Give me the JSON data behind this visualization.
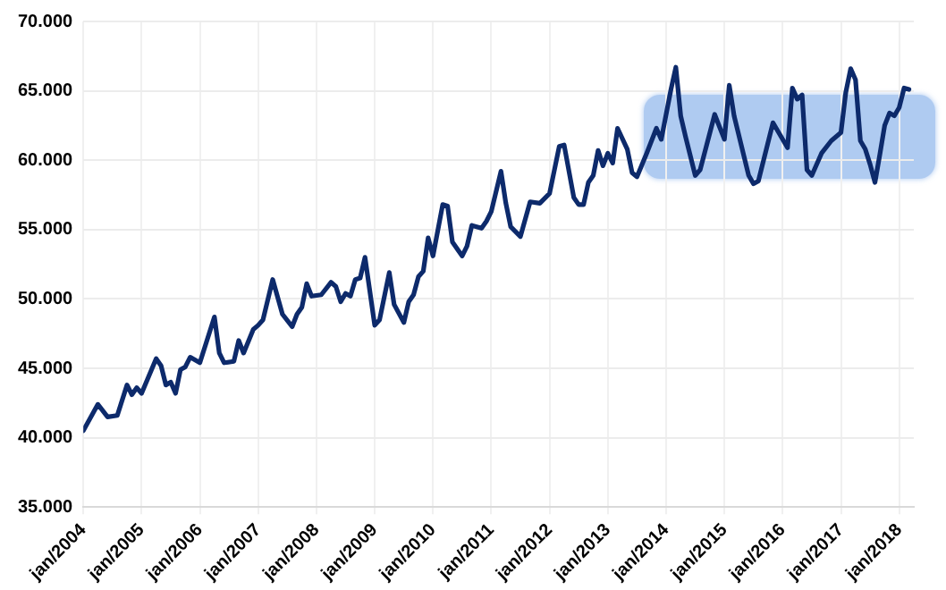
{
  "chart_data": {
    "type": "line",
    "grid": true,
    "legend": false,
    "marker": "none",
    "line_style": "solid",
    "xlim": [
      "2004-01",
      "2018-04"
    ],
    "xticks": [
      {
        "value": "2004-01",
        "label": "jan/2004"
      },
      {
        "value": "2005-01",
        "label": "jan/2005"
      },
      {
        "value": "2006-01",
        "label": "jan/2006"
      },
      {
        "value": "2007-01",
        "label": "jan/2007"
      },
      {
        "value": "2008-01",
        "label": "jan/2008"
      },
      {
        "value": "2009-01",
        "label": "jan/2009"
      },
      {
        "value": "2010-01",
        "label": "jan/2010"
      },
      {
        "value": "2011-01",
        "label": "jan/2011"
      },
      {
        "value": "2012-01",
        "label": "jan/2012"
      },
      {
        "value": "2013-01",
        "label": "jan/2013"
      },
      {
        "value": "2014-01",
        "label": "jan/2014"
      },
      {
        "value": "2015-01",
        "label": "jan/2015"
      },
      {
        "value": "2016-01",
        "label": "jan/2016"
      },
      {
        "value": "2017-01",
        "label": "jan/2017"
      },
      {
        "value": "2018-01",
        "label": "jan/2018"
      }
    ],
    "ylim": [
      35000,
      70000
    ],
    "yticks": [
      {
        "value": 35000,
        "label": "35.000"
      },
      {
        "value": 40000,
        "label": "40.000"
      },
      {
        "value": 45000,
        "label": "45.000"
      },
      {
        "value": 50000,
        "label": "50.000"
      },
      {
        "value": 55000,
        "label": "55.000"
      },
      {
        "value": 60000,
        "label": "60.000"
      },
      {
        "value": 65000,
        "label": "65.000"
      },
      {
        "value": 70000,
        "label": "70.000"
      }
    ],
    "x": [
      "2004-01",
      "2004-04",
      "2004-06",
      "2004-08",
      "2004-10",
      "2004-11",
      "2004-12",
      "2005-01",
      "2005-04",
      "2005-05",
      "2005-06",
      "2005-07",
      "2005-08",
      "2005-09",
      "2005-10",
      "2005-11",
      "2006-01",
      "2006-04",
      "2006-05",
      "2006-06",
      "2006-08",
      "2006-09",
      "2006-10",
      "2006-12",
      "2007-01",
      "2007-02",
      "2007-04",
      "2007-06",
      "2007-08",
      "2007-09",
      "2007-10",
      "2007-11",
      "2007-12",
      "2008-02",
      "2008-04",
      "2008-05",
      "2008-06",
      "2008-07",
      "2008-08",
      "2008-09",
      "2008-10",
      "2008-11",
      "2009-01",
      "2009-02",
      "2009-04",
      "2009-05",
      "2009-07",
      "2009-08",
      "2009-09",
      "2009-10",
      "2009-11",
      "2009-12",
      "2010-01",
      "2010-03",
      "2010-04",
      "2010-05",
      "2010-07",
      "2010-08",
      "2010-09",
      "2010-11",
      "2010-12",
      "2011-01",
      "2011-03",
      "2011-04",
      "2011-05",
      "2011-07",
      "2011-09",
      "2011-11",
      "2012-01",
      "2012-03",
      "2012-04",
      "2012-06",
      "2012-07",
      "2012-08",
      "2012-09",
      "2012-10",
      "2012-11",
      "2012-12",
      "2013-01",
      "2013-02",
      "2013-03",
      "2013-05",
      "2013-06",
      "2013-07",
      "2013-09",
      "2013-11",
      "2013-12",
      "2014-02",
      "2014-03",
      "2014-04",
      "2014-05",
      "2014-07",
      "2014-08",
      "2014-11",
      "2015-01",
      "2015-02",
      "2015-03",
      "2015-06",
      "2015-07",
      "2015-08",
      "2015-11",
      "2016-02",
      "2016-03",
      "2016-04",
      "2016-05",
      "2016-06",
      "2016-07",
      "2016-09",
      "2016-11",
      "2017-01",
      "2017-02",
      "2017-03",
      "2017-04",
      "2017-05",
      "2017-06",
      "2017-07",
      "2017-08",
      "2017-09",
      "2017-10",
      "2017-11",
      "2017-12",
      "2018-01",
      "2018-02",
      "2018-03"
    ],
    "series": [
      {
        "color": "#0d2a6b",
        "values": [
          40500,
          42400,
          41500,
          41600,
          43800,
          43100,
          43600,
          43200,
          45700,
          45200,
          43800,
          44000,
          43200,
          44900,
          45100,
          45800,
          45400,
          48700,
          46100,
          45400,
          45500,
          47000,
          46100,
          47800,
          48100,
          48500,
          51400,
          48900,
          48000,
          48900,
          49400,
          51100,
          50200,
          50300,
          51200,
          50900,
          49800,
          50400,
          50200,
          51400,
          51500,
          53000,
          48100,
          48500,
          51900,
          49600,
          48300,
          49800,
          50300,
          51600,
          52000,
          54400,
          53100,
          56800,
          56700,
          54100,
          53100,
          53800,
          55300,
          55100,
          55600,
          56300,
          59200,
          56900,
          55200,
          54500,
          57000,
          56900,
          57600,
          61000,
          61100,
          57300,
          56800,
          56800,
          58400,
          58900,
          60700,
          59600,
          60500,
          59800,
          62300,
          60800,
          59100,
          58800,
          60500,
          62300,
          61500,
          65100,
          66700,
          63200,
          61700,
          58900,
          59300,
          63300,
          61500,
          65400,
          63200,
          58900,
          58300,
          58500,
          62700,
          60900,
          65200,
          64400,
          64700,
          59300,
          58900,
          60500,
          61400,
          62000,
          64900,
          66600,
          65800,
          61400,
          60800,
          59700,
          58400,
          60400,
          62500,
          63400,
          63200,
          63800,
          65200,
          65100
        ]
      }
    ]
  }
}
